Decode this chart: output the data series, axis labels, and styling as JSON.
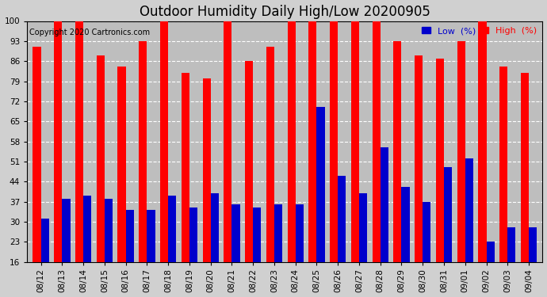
{
  "title": "Outdoor Humidity Daily High/Low 20200905",
  "copyright": "Copyright 2020 Cartronics.com",
  "legend_low": "Low  (%)",
  "legend_high": "High  (%)",
  "categories": [
    "08/12",
    "08/13",
    "08/14",
    "08/15",
    "08/16",
    "08/17",
    "08/18",
    "08/19",
    "08/20",
    "08/21",
    "08/22",
    "08/23",
    "08/24",
    "08/25",
    "08/26",
    "08/27",
    "08/28",
    "08/29",
    "08/30",
    "08/31",
    "09/01",
    "09/02",
    "09/03",
    "09/04"
  ],
  "high_values": [
    91,
    100,
    100,
    88,
    84,
    93,
    100,
    82,
    80,
    100,
    86,
    91,
    100,
    100,
    100,
    100,
    100,
    93,
    88,
    87,
    93,
    100,
    84,
    82
  ],
  "low_values": [
    31,
    38,
    39,
    38,
    34,
    34,
    39,
    35,
    40,
    36,
    35,
    36,
    36,
    70,
    46,
    40,
    56,
    42,
    37,
    49,
    52,
    23,
    28,
    28
  ],
  "bar_width": 0.38,
  "ylim_min": 16,
  "ylim_max": 100,
  "yticks": [
    16,
    23,
    30,
    37,
    44,
    51,
    58,
    65,
    72,
    79,
    86,
    93,
    100
  ],
  "bg_color": "#d0d0d0",
  "plot_bg_color": "#bebebe",
  "grid_color": "white",
  "high_color": "#ff0000",
  "low_color": "#0000cc",
  "title_fontsize": 12,
  "tick_fontsize": 7.5,
  "copyright_fontsize": 7
}
